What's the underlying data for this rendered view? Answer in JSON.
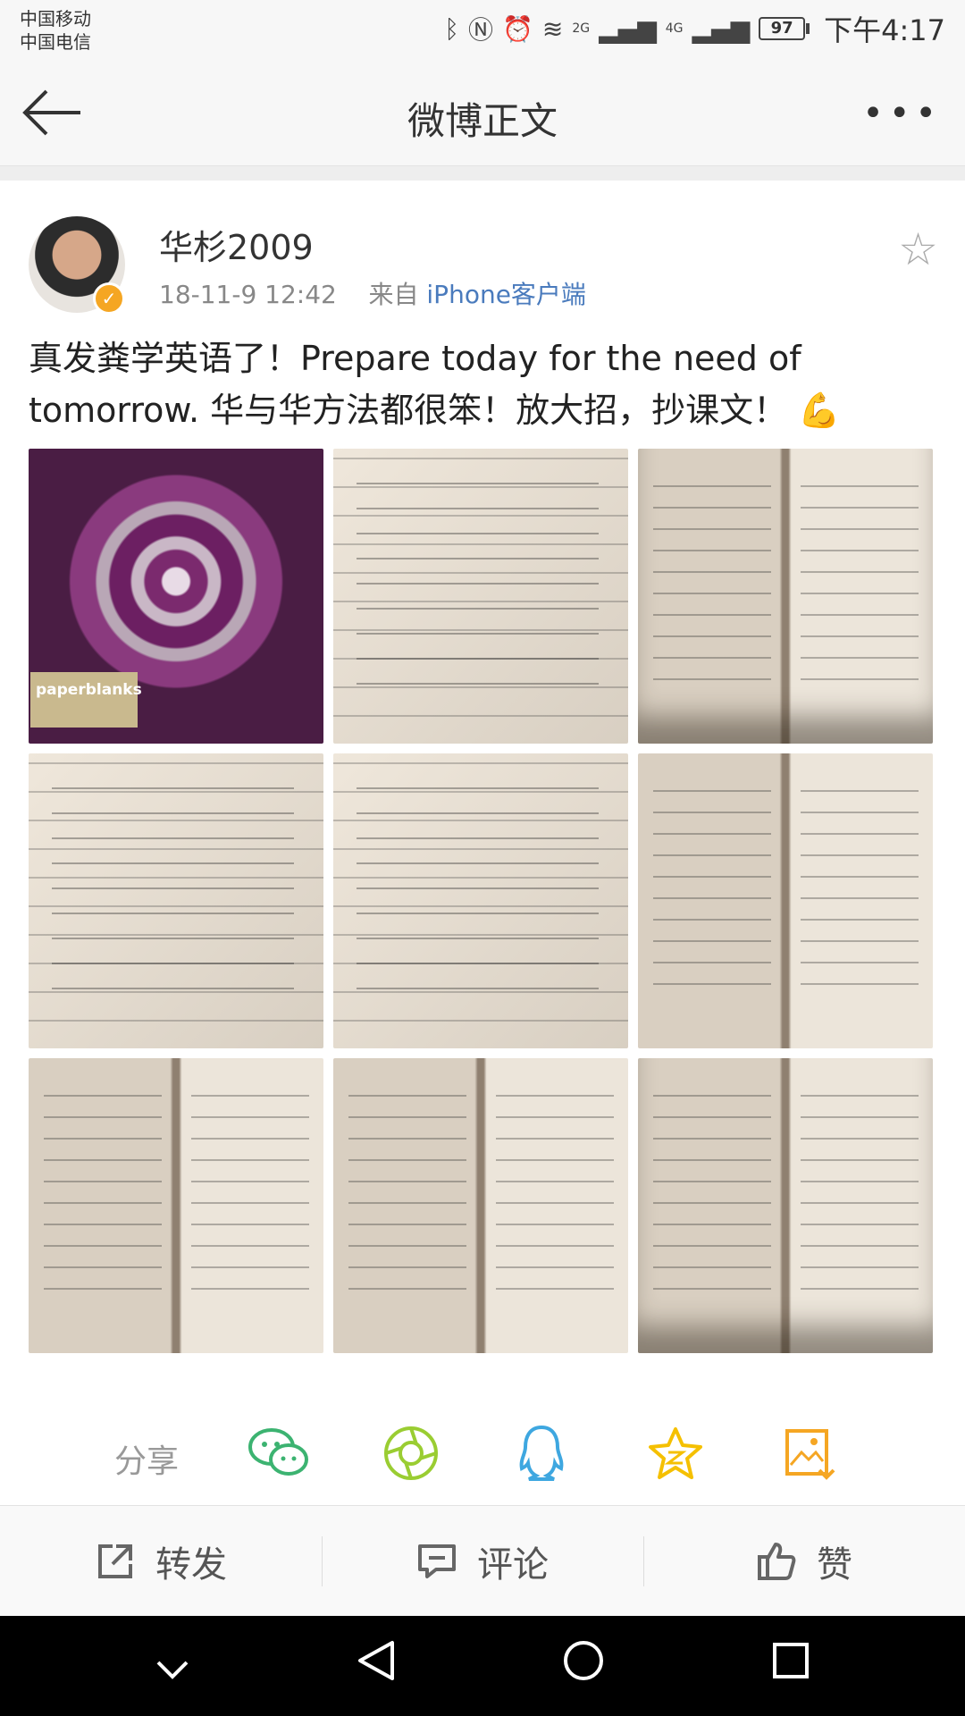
{
  "status_bar": {
    "carrier_1": "中国移动",
    "carrier_2": "中国电信",
    "signal_1": "2G",
    "signal_2": "4G",
    "battery": "97",
    "time": "下午4:17"
  },
  "nav": {
    "title": "微博正文",
    "more_label": "•••"
  },
  "post": {
    "username": "华杉2009",
    "date": "18-11-9 12:42",
    "source_prefix": "来自",
    "source": "iPhone客户端",
    "text": "真发粪学英语了！Prepare today for the need of tomorrow. 华与华方法都很笨！放大招，抄课文！",
    "emoji": "💪",
    "cover_brand": "paperblanks",
    "image_count": 9
  },
  "share": {
    "label": "分享",
    "targets": [
      "wechat",
      "moments",
      "qq",
      "qzone",
      "save-image"
    ]
  },
  "actions": {
    "repost": "转发",
    "comment": "评论",
    "like": "赞"
  },
  "colors": {
    "link": "#4a7bbd",
    "verified": "#f5a623",
    "wechat": "#3cb371",
    "moments": "#9acd32",
    "qq": "#3ea7e0",
    "qzone": "#f5c000",
    "save": "#f5a623"
  }
}
